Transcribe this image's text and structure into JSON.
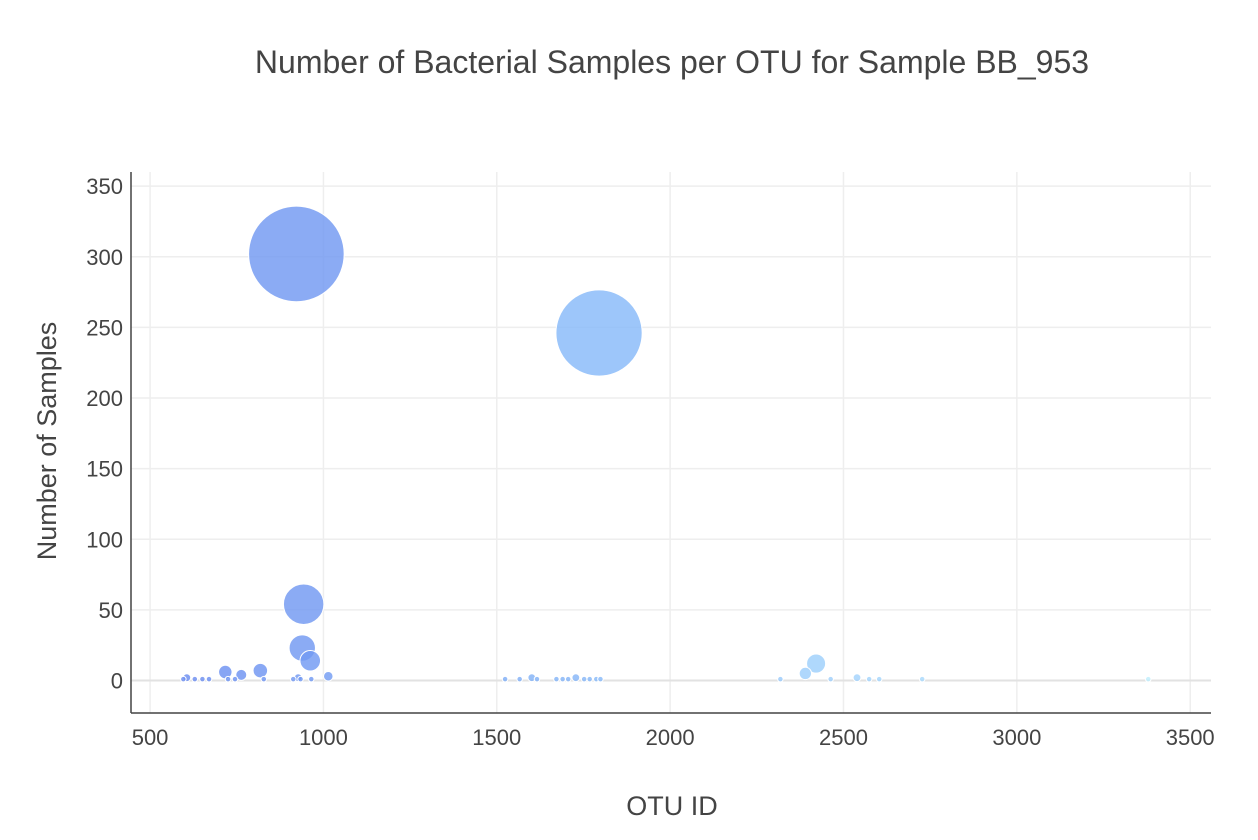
{
  "chart_data": {
    "type": "scatter",
    "title": "Number of Bacterial Samples per OTU for Sample BB_953",
    "xlabel": "OTU ID",
    "ylabel": "Number of Samples",
    "xlim": [
      445,
      3560
    ],
    "ylim": [
      -23,
      360
    ],
    "xticks": [
      500,
      1000,
      1500,
      2000,
      2500,
      3000,
      3500
    ],
    "yticks": [
      0,
      50,
      100,
      150,
      200,
      250,
      300,
      350
    ],
    "grid": true,
    "legend": "none",
    "colorscale": [
      "#6b8df0",
      "#78a6f5",
      "#8ec0fa",
      "#a8d8fc",
      "#c0eefd"
    ],
    "series": [
      {
        "x": [
          922,
          1795,
          943,
          939,
          962,
          818,
          717,
          2421,
          763,
          1014,
          2390,
          606,
          1601,
          1728,
          2539,
          927,
          596,
          629,
          651,
          670,
          725,
          745,
          828,
          913,
          934,
          965,
          1524,
          1566,
          1616,
          1672,
          1690,
          1706,
          1752,
          1768,
          1787,
          1799,
          2318,
          2463,
          2574,
          2603,
          2727,
          3379
        ],
        "y": [
          302,
          246,
          54,
          23,
          14,
          7,
          6,
          12,
          4,
          3,
          5,
          2,
          2,
          2,
          2,
          2,
          1,
          1,
          1,
          1,
          1,
          1,
          1,
          1,
          1,
          1,
          1,
          1,
          1,
          1,
          1,
          1,
          1,
          1,
          1,
          1,
          1,
          1,
          1,
          1,
          1,
          1
        ]
      }
    ]
  }
}
